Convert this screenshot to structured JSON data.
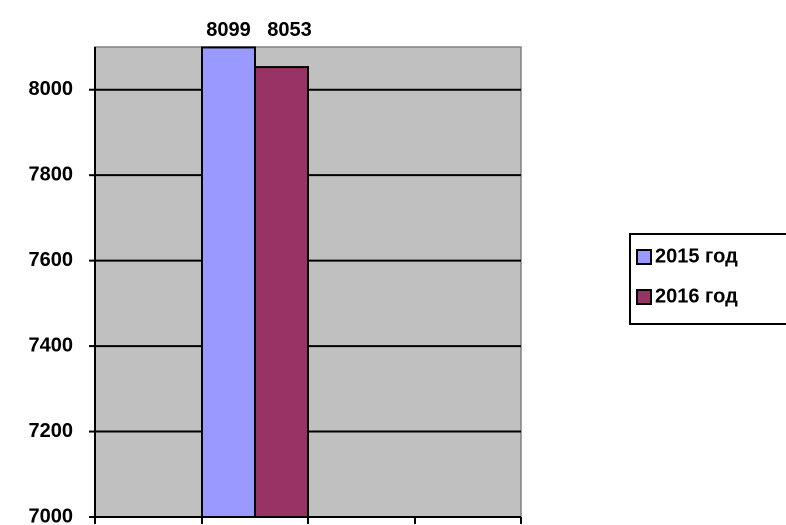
{
  "chart_data": {
    "type": "bar",
    "title": "",
    "xlabel": "",
    "ylabel": "",
    "categories": [
      ""
    ],
    "series": [
      {
        "name": "2015 год",
        "values": [
          8099
        ],
        "color": "#9999ff"
      },
      {
        "name": "2016 год",
        "values": [
          8053
        ],
        "color": "#993366"
      }
    ],
    "ylim": [
      7000,
      8100
    ],
    "yticks": [
      7000,
      7200,
      7400,
      7600,
      7800,
      8000
    ],
    "ytick_labels": [
      "7000",
      "7200",
      "7400",
      "7600",
      "7800",
      "8000"
    ],
    "data_labels": [
      "8099",
      "8053"
    ],
    "grid": true,
    "plot_background": "#c0c0c0",
    "legend_position": "right"
  }
}
